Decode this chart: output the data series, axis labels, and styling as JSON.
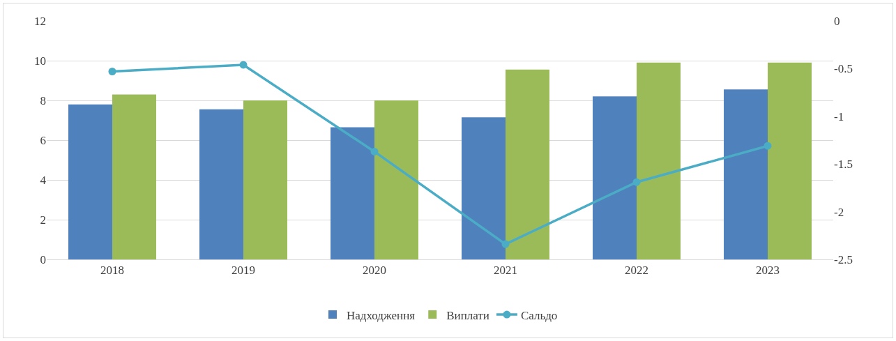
{
  "chart_data": {
    "type": "bar",
    "categories": [
      "2018",
      "2019",
      "2020",
      "2021",
      "2022",
      "2023"
    ],
    "series": [
      {
        "name": "Надходження",
        "color": "#4f81bd",
        "values": [
          7.8,
          7.55,
          6.65,
          7.15,
          8.2,
          8.55
        ]
      },
      {
        "name": "Виплати",
        "color": "#9bbb59",
        "values": [
          8.3,
          8.0,
          8.0,
          9.55,
          9.9,
          9.9
        ]
      },
      {
        "name": "Сальдо",
        "type": "line",
        "axis": "y2",
        "color": "#4bacc6",
        "marker": "circle",
        "values": [
          -0.53,
          -0.46,
          -1.37,
          -2.34,
          -1.69,
          -1.31
        ]
      }
    ],
    "ylim": [
      0,
      12
    ],
    "yticks": [
      0,
      2,
      4,
      6,
      8,
      10,
      12
    ],
    "y2lim": [
      -2.5,
      0
    ],
    "y2ticks": [
      -2.5,
      -2,
      -1.5,
      -1,
      -0.5,
      0
    ],
    "grid": "y",
    "legend": "bottom"
  }
}
